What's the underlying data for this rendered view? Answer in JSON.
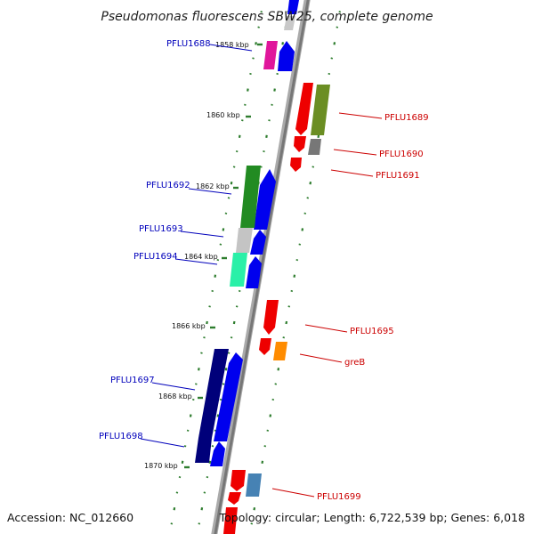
{
  "title": "Pseudomonas fluorescens SBW25, complete genome",
  "footer": {
    "accession": "Accession: NC_012660",
    "topology": "Topology: circular; Length: 6,722,539 bp; Genes: 6,018"
  },
  "colors": {
    "backbone": "#888888",
    "forward_label": "#0000bb",
    "reverse_label": "#cc0000",
    "gc_dots": "#2e7d2e"
  },
  "kbp_ticks": [
    "1858 kbp",
    "1860 kbp",
    "1862 kbp",
    "1864 kbp",
    "1866 kbp",
    "1868 kbp",
    "1870 kbp"
  ],
  "labels": {
    "forward": [
      "PFLU1688",
      "PFLU1692",
      "PFLU1693",
      "PFLU1694",
      "PFLU1697",
      "PFLU1698"
    ],
    "reverse": [
      "PFLU1689",
      "PFLU1690",
      "PFLU1691",
      "PFLU1695",
      "greB",
      "PFLU1699"
    ]
  }
}
